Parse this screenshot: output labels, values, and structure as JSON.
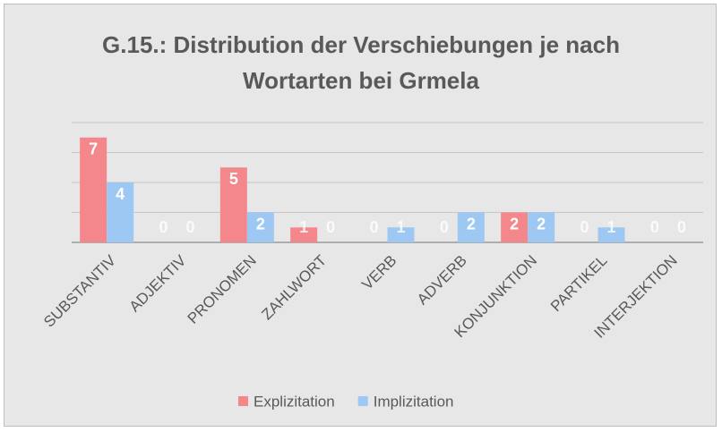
{
  "chart_data": {
    "type": "bar",
    "title": "G.15.: Distribution der Verschiebungen je nach Wortarten bei Grmela",
    "categories": [
      "SUBSTANTIV",
      "ADJEKTIV",
      "PRONOMEN",
      "ZAHLWORT",
      "VERB",
      "ADVERB",
      "KONJUNKTION",
      "PARTIKEL",
      "INTERJEKTION"
    ],
    "series": [
      {
        "name": "Explizitation",
        "color": "#f4878b",
        "values": [
          7,
          0,
          5,
          1,
          0,
          0,
          2,
          0,
          0
        ]
      },
      {
        "name": "Implizitation",
        "color": "#9dc8f3",
        "values": [
          4,
          0,
          2,
          0,
          1,
          2,
          2,
          1,
          0
        ]
      }
    ],
    "ylim": [
      0,
      8
    ],
    "yticks": [
      0,
      2,
      4,
      6,
      8
    ],
    "grid": true,
    "legend": "bottom"
  }
}
